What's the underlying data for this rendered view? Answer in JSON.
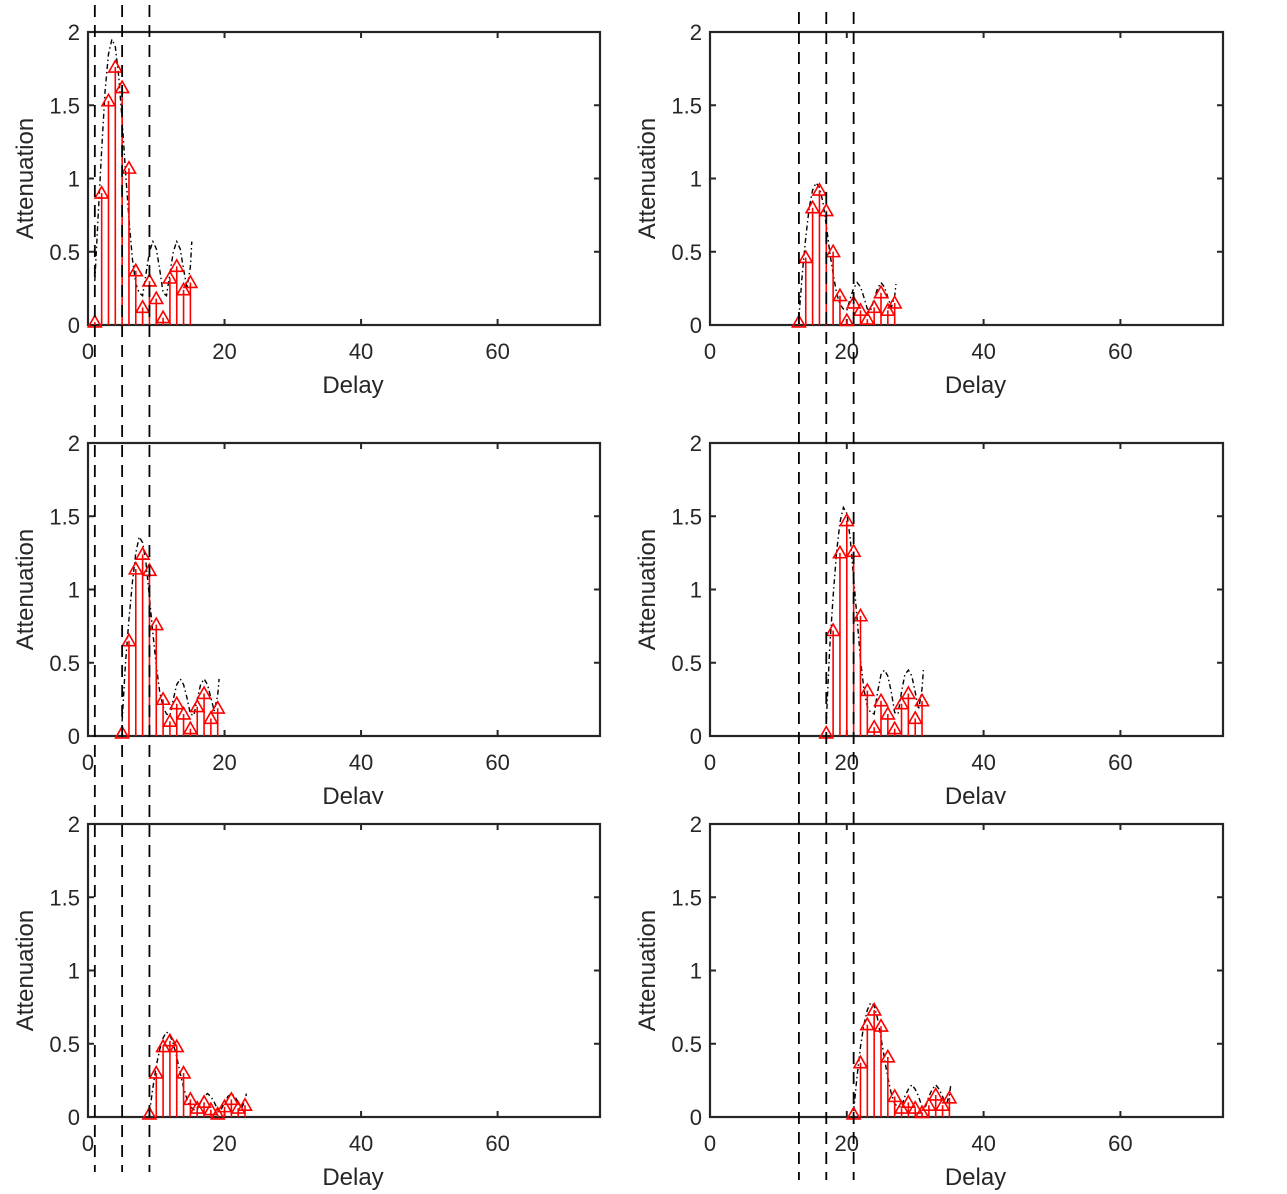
{
  "chart_data": [
    {
      "type": "stem",
      "panel": "top-left",
      "xlabel": "Delay",
      "ylabel": "Attenuation",
      "xlim": [
        0,
        75
      ],
      "ylim": [
        0,
        2
      ],
      "xticks": [
        "0",
        "20",
        "40",
        "60"
      ],
      "yticks": [
        "0",
        "0.5",
        "1",
        "1.5",
        "2"
      ],
      "x": [
        1,
        2,
        3,
        4,
        5,
        6,
        7,
        8,
        9,
        10,
        11,
        12,
        13,
        14,
        15
      ],
      "values": [
        0.02,
        0.9,
        1.53,
        1.76,
        1.62,
        1.07,
        0.37,
        0.12,
        0.3,
        0.18,
        0.05,
        0.32,
        0.4,
        0.24,
        0.29
      ],
      "envelope": {
        "x": [
          1,
          1.5,
          2,
          2.5,
          3,
          3.5,
          4,
          4.5,
          5,
          5.5,
          6,
          6.5,
          7,
          7.5,
          8,
          8.5,
          9,
          9.5,
          10,
          10.5,
          11,
          11.5,
          12,
          12.5,
          13,
          13.5,
          14,
          14.5,
          15,
          15.2
        ],
        "y": [
          0.3,
          0.75,
          1.2,
          1.6,
          1.85,
          1.95,
          1.9,
          1.7,
          1.4,
          1.05,
          0.72,
          0.45,
          0.28,
          0.22,
          0.2,
          0.35,
          0.5,
          0.57,
          0.52,
          0.38,
          0.22,
          0.2,
          0.35,
          0.5,
          0.57,
          0.52,
          0.38,
          0.25,
          0.4,
          0.57
        ]
      },
      "vlines": [
        1,
        5,
        9
      ]
    },
    {
      "type": "stem",
      "panel": "top-right",
      "xlabel": "Delay",
      "ylabel": "Attenuation",
      "xlim": [
        0,
        75
      ],
      "ylim": [
        0,
        2
      ],
      "xticks": [
        "0",
        "20",
        "40",
        "60"
      ],
      "yticks": [
        "0",
        "0.5",
        "1",
        "1.5",
        "2"
      ],
      "x": [
        13,
        14,
        15,
        16,
        17,
        18,
        19,
        20,
        21,
        22,
        23,
        24,
        25,
        26,
        27
      ],
      "values": [
        0.02,
        0.46,
        0.8,
        0.92,
        0.78,
        0.5,
        0.2,
        0.03,
        0.15,
        0.1,
        0.04,
        0.12,
        0.22,
        0.1,
        0.15
      ],
      "envelope": {
        "x": [
          13,
          13.5,
          14,
          14.5,
          15,
          15.5,
          16,
          16.5,
          17,
          17.5,
          18,
          18.5,
          19,
          19.5,
          20,
          20.5,
          21,
          21.5,
          22,
          22.5,
          23,
          23.5,
          24,
          24.5,
          25,
          25.5,
          26,
          26.5,
          27,
          27.2
        ],
        "y": [
          0.05,
          0.35,
          0.6,
          0.8,
          0.92,
          0.97,
          0.94,
          0.84,
          0.68,
          0.5,
          0.35,
          0.22,
          0.14,
          0.11,
          0.1,
          0.18,
          0.25,
          0.29,
          0.26,
          0.19,
          0.11,
          0.1,
          0.18,
          0.25,
          0.29,
          0.26,
          0.19,
          0.12,
          0.2,
          0.28
        ]
      },
      "vlines": [
        13,
        17,
        21
      ]
    },
    {
      "type": "stem",
      "panel": "middle-left",
      "xlabel": "Delay",
      "ylabel": "Attenuation",
      "xlim": [
        0,
        75
      ],
      "ylim": [
        0,
        2
      ],
      "xticks": [
        "0",
        "20",
        "40",
        "60"
      ],
      "yticks": [
        "0",
        "0.5",
        "1",
        "1.5",
        "2"
      ],
      "x": [
        5,
        6,
        7,
        8,
        9,
        10,
        11,
        12,
        13,
        14,
        15,
        16,
        17,
        18,
        19
      ],
      "values": [
        0.02,
        0.65,
        1.14,
        1.24,
        1.13,
        0.76,
        0.25,
        0.1,
        0.22,
        0.15,
        0.05,
        0.2,
        0.29,
        0.12,
        0.19
      ],
      "envelope": {
        "x": [
          5,
          5.5,
          6,
          6.5,
          7,
          7.5,
          8,
          8.5,
          9,
          9.5,
          10,
          10.5,
          11,
          11.5,
          12,
          12.5,
          13,
          13.5,
          14,
          14.5,
          15,
          15.5,
          16,
          16.5,
          17,
          17.5,
          18,
          18.5,
          19,
          19.2
        ],
        "y": [
          0.1,
          0.5,
          0.8,
          1.05,
          1.25,
          1.36,
          1.32,
          1.18,
          0.95,
          0.7,
          0.48,
          0.3,
          0.2,
          0.15,
          0.14,
          0.25,
          0.35,
          0.39,
          0.35,
          0.26,
          0.15,
          0.14,
          0.25,
          0.35,
          0.39,
          0.35,
          0.26,
          0.17,
          0.28,
          0.39
        ]
      },
      "vlines": [
        1,
        5,
        9
      ]
    },
    {
      "type": "stem",
      "panel": "middle-right",
      "xlabel": "Delay",
      "ylabel": "Attenuation",
      "xlim": [
        0,
        75
      ],
      "ylim": [
        0,
        2
      ],
      "xticks": [
        "0",
        "20",
        "40",
        "60"
      ],
      "yticks": [
        "0",
        "0.5",
        "1",
        "1.5",
        "2"
      ],
      "x": [
        17,
        18,
        19,
        20,
        21,
        22,
        23,
        24,
        25,
        26,
        27,
        28,
        29,
        30,
        31
      ],
      "values": [
        0.02,
        0.72,
        1.25,
        1.47,
        1.26,
        0.82,
        0.31,
        0.06,
        0.24,
        0.15,
        0.05,
        0.22,
        0.29,
        0.12,
        0.24
      ],
      "envelope": {
        "x": [
          17,
          17.5,
          18,
          18.5,
          19,
          19.5,
          20,
          20.5,
          21,
          21.5,
          22,
          22.5,
          23,
          23.5,
          24,
          24.5,
          25,
          25.5,
          26,
          26.5,
          27,
          27.5,
          28,
          28.5,
          29,
          29.5,
          30,
          30.5,
          31,
          31.2
        ],
        "y": [
          0.1,
          0.6,
          0.95,
          1.25,
          1.46,
          1.56,
          1.52,
          1.35,
          1.08,
          0.8,
          0.52,
          0.32,
          0.2,
          0.16,
          0.15,
          0.3,
          0.42,
          0.45,
          0.41,
          0.3,
          0.16,
          0.15,
          0.3,
          0.42,
          0.45,
          0.41,
          0.3,
          0.18,
          0.32,
          0.45
        ]
      },
      "vlines": [
        13,
        17,
        21
      ]
    },
    {
      "type": "stem",
      "panel": "bottom-left",
      "xlabel": "Delay",
      "ylabel": "Attenuation",
      "xlim": [
        0,
        75
      ],
      "ylim": [
        0,
        2
      ],
      "xticks": [
        "0",
        "20",
        "40",
        "60"
      ],
      "yticks": [
        "0",
        "0.5",
        "1",
        "1.5",
        "2"
      ],
      "x": [
        9,
        10,
        11,
        12,
        13,
        14,
        15,
        16,
        17,
        18,
        19,
        20,
        21,
        22,
        23
      ],
      "values": [
        0.02,
        0.3,
        0.48,
        0.52,
        0.48,
        0.3,
        0.12,
        0.06,
        0.1,
        0.05,
        0.02,
        0.07,
        0.12,
        0.06,
        0.08
      ],
      "envelope": {
        "x": [
          9,
          9.5,
          10,
          10.5,
          11,
          11.5,
          12,
          12.5,
          13,
          13.5,
          14,
          14.5,
          15,
          15.5,
          16,
          16.5,
          17,
          17.5,
          18,
          18.5,
          19,
          19.5,
          20,
          20.5,
          21,
          21.5,
          22,
          22.5,
          23,
          23.2
        ],
        "y": [
          0.03,
          0.2,
          0.35,
          0.46,
          0.54,
          0.58,
          0.56,
          0.5,
          0.41,
          0.3,
          0.2,
          0.12,
          0.07,
          0.05,
          0.05,
          0.1,
          0.14,
          0.16,
          0.14,
          0.1,
          0.05,
          0.05,
          0.1,
          0.14,
          0.16,
          0.14,
          0.1,
          0.06,
          0.11,
          0.16
        ]
      },
      "vlines": [
        1,
        5,
        9
      ]
    },
    {
      "type": "stem",
      "panel": "bottom-right",
      "xlabel": "Delay",
      "ylabel": "Attenuation",
      "xlim": [
        0,
        75
      ],
      "ylim": [
        0,
        2
      ],
      "xticks": [
        "0",
        "20",
        "40",
        "60"
      ],
      "yticks": [
        "0",
        "0.5",
        "1",
        "1.5",
        "2"
      ],
      "x": [
        21,
        22,
        23,
        24,
        25,
        26,
        27,
        28,
        29,
        30,
        31,
        32,
        33,
        34,
        35
      ],
      "values": [
        0.02,
        0.37,
        0.63,
        0.73,
        0.62,
        0.41,
        0.14,
        0.06,
        0.1,
        0.06,
        0.03,
        0.08,
        0.15,
        0.08,
        0.13
      ],
      "envelope": {
        "x": [
          21,
          21.5,
          22,
          22.5,
          23,
          23.5,
          24,
          24.5,
          25,
          25.5,
          26,
          26.5,
          27,
          27.5,
          28,
          28.5,
          29,
          29.5,
          30,
          30.5,
          31,
          31.5,
          32,
          32.5,
          33,
          33.5,
          34,
          34.5,
          35,
          35.2
        ],
        "y": [
          0.04,
          0.28,
          0.48,
          0.63,
          0.73,
          0.78,
          0.76,
          0.67,
          0.54,
          0.4,
          0.27,
          0.16,
          0.09,
          0.07,
          0.07,
          0.14,
          0.19,
          0.22,
          0.19,
          0.14,
          0.07,
          0.07,
          0.14,
          0.19,
          0.22,
          0.19,
          0.14,
          0.08,
          0.15,
          0.22
        ]
      },
      "vlines": [
        13,
        17,
        21
      ]
    }
  ],
  "colors": {
    "stem": "#ff0000",
    "envelope": "#000000",
    "axes": "#262626",
    "vline": "#000000"
  }
}
